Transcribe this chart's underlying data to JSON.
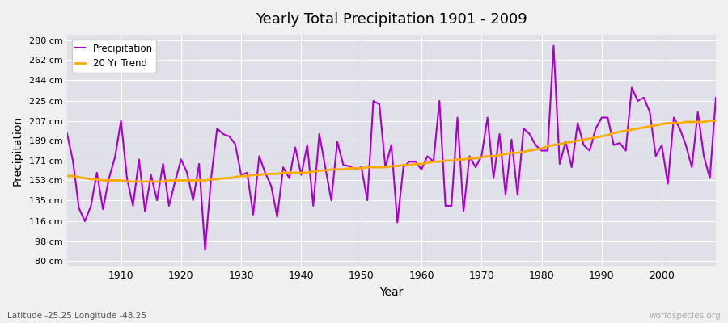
{
  "title": "Yearly Total Precipitation 1901 - 2009",
  "xlabel": "Year",
  "ylabel": "Precipitation",
  "subtitle": "Latitude -25.25 Longitude -48.25",
  "watermark": "worldspecies.org",
  "bg_color": "#f0f0f0",
  "plot_bg_color": "#e0e0e8",
  "precip_color": "#aa00cc",
  "trend_color": "#ffaa00",
  "precip_label": "Precipitation",
  "trend_label": "20 Yr Trend",
  "yticks": [
    80,
    98,
    116,
    135,
    153,
    171,
    189,
    207,
    225,
    244,
    262,
    280
  ],
  "ytick_labels": [
    "80 cm",
    "98 cm",
    "116 cm",
    "135 cm",
    "153 cm",
    "171 cm",
    "189 cm",
    "207 cm",
    "225 cm",
    "244 cm",
    "262 cm",
    "280 cm"
  ],
  "ylim": [
    75,
    285
  ],
  "xlim": [
    1901,
    2009
  ],
  "xticks": [
    1910,
    1920,
    1930,
    1940,
    1950,
    1960,
    1970,
    1980,
    1990,
    2000
  ],
  "years": [
    1901,
    1902,
    1903,
    1904,
    1905,
    1906,
    1907,
    1908,
    1909,
    1910,
    1911,
    1912,
    1913,
    1914,
    1915,
    1916,
    1917,
    1918,
    1919,
    1920,
    1921,
    1922,
    1923,
    1924,
    1925,
    1926,
    1927,
    1928,
    1929,
    1930,
    1931,
    1932,
    1933,
    1934,
    1935,
    1936,
    1937,
    1938,
    1939,
    1940,
    1941,
    1942,
    1943,
    1944,
    1945,
    1946,
    1947,
    1948,
    1949,
    1950,
    1951,
    1952,
    1953,
    1954,
    1955,
    1956,
    1957,
    1958,
    1959,
    1960,
    1961,
    1962,
    1963,
    1964,
    1965,
    1966,
    1967,
    1968,
    1969,
    1970,
    1971,
    1972,
    1973,
    1974,
    1975,
    1976,
    1977,
    1978,
    1979,
    1980,
    1981,
    1982,
    1983,
    1984,
    1985,
    1986,
    1987,
    1988,
    1989,
    1990,
    1991,
    1992,
    1993,
    1994,
    1995,
    1996,
    1997,
    1998,
    1999,
    2000,
    2001,
    2002,
    2003,
    2004,
    2005,
    2006,
    2007,
    2008,
    2009
  ],
  "precip": [
    196,
    171,
    128,
    116,
    130,
    160,
    127,
    155,
    174,
    207,
    155,
    130,
    172,
    125,
    158,
    135,
    168,
    130,
    152,
    172,
    160,
    135,
    168,
    90,
    155,
    200,
    195,
    193,
    186,
    158,
    160,
    122,
    175,
    160,
    148,
    120,
    165,
    155,
    183,
    158,
    185,
    130,
    195,
    165,
    135,
    188,
    167,
    166,
    163,
    165,
    135,
    225,
    222,
    165,
    185,
    115,
    165,
    170,
    170,
    163,
    175,
    170,
    225,
    130,
    130,
    210,
    125,
    175,
    165,
    175,
    210,
    155,
    195,
    140,
    190,
    140,
    200,
    195,
    185,
    180,
    180,
    275,
    168,
    188,
    165,
    205,
    185,
    180,
    200,
    210,
    210,
    185,
    187,
    180,
    237,
    225,
    228,
    215,
    175,
    185,
    150,
    210,
    200,
    185,
    165,
    215,
    175,
    155,
    228
  ],
  "trend": [
    157,
    157,
    156,
    155,
    154,
    154,
    153,
    153,
    153,
    153,
    152,
    152,
    152,
    152,
    152,
    152,
    152,
    153,
    153,
    153,
    153,
    153,
    153,
    153,
    154,
    154,
    155,
    155,
    156,
    157,
    157,
    158,
    158,
    159,
    159,
    159,
    160,
    160,
    160,
    160,
    160,
    161,
    162,
    162,
    163,
    163,
    163,
    164,
    164,
    164,
    165,
    165,
    165,
    165,
    166,
    166,
    167,
    167,
    168,
    168,
    169,
    170,
    170,
    171,
    171,
    172,
    172,
    173,
    173,
    174,
    175,
    175,
    176,
    177,
    178,
    178,
    179,
    180,
    181,
    182,
    184,
    185,
    186,
    187,
    188,
    189,
    190,
    191,
    192,
    193,
    194,
    196,
    197,
    198,
    199,
    200,
    201,
    202,
    203,
    204,
    205,
    205,
    205,
    206,
    206,
    206,
    206,
    207,
    207
  ]
}
